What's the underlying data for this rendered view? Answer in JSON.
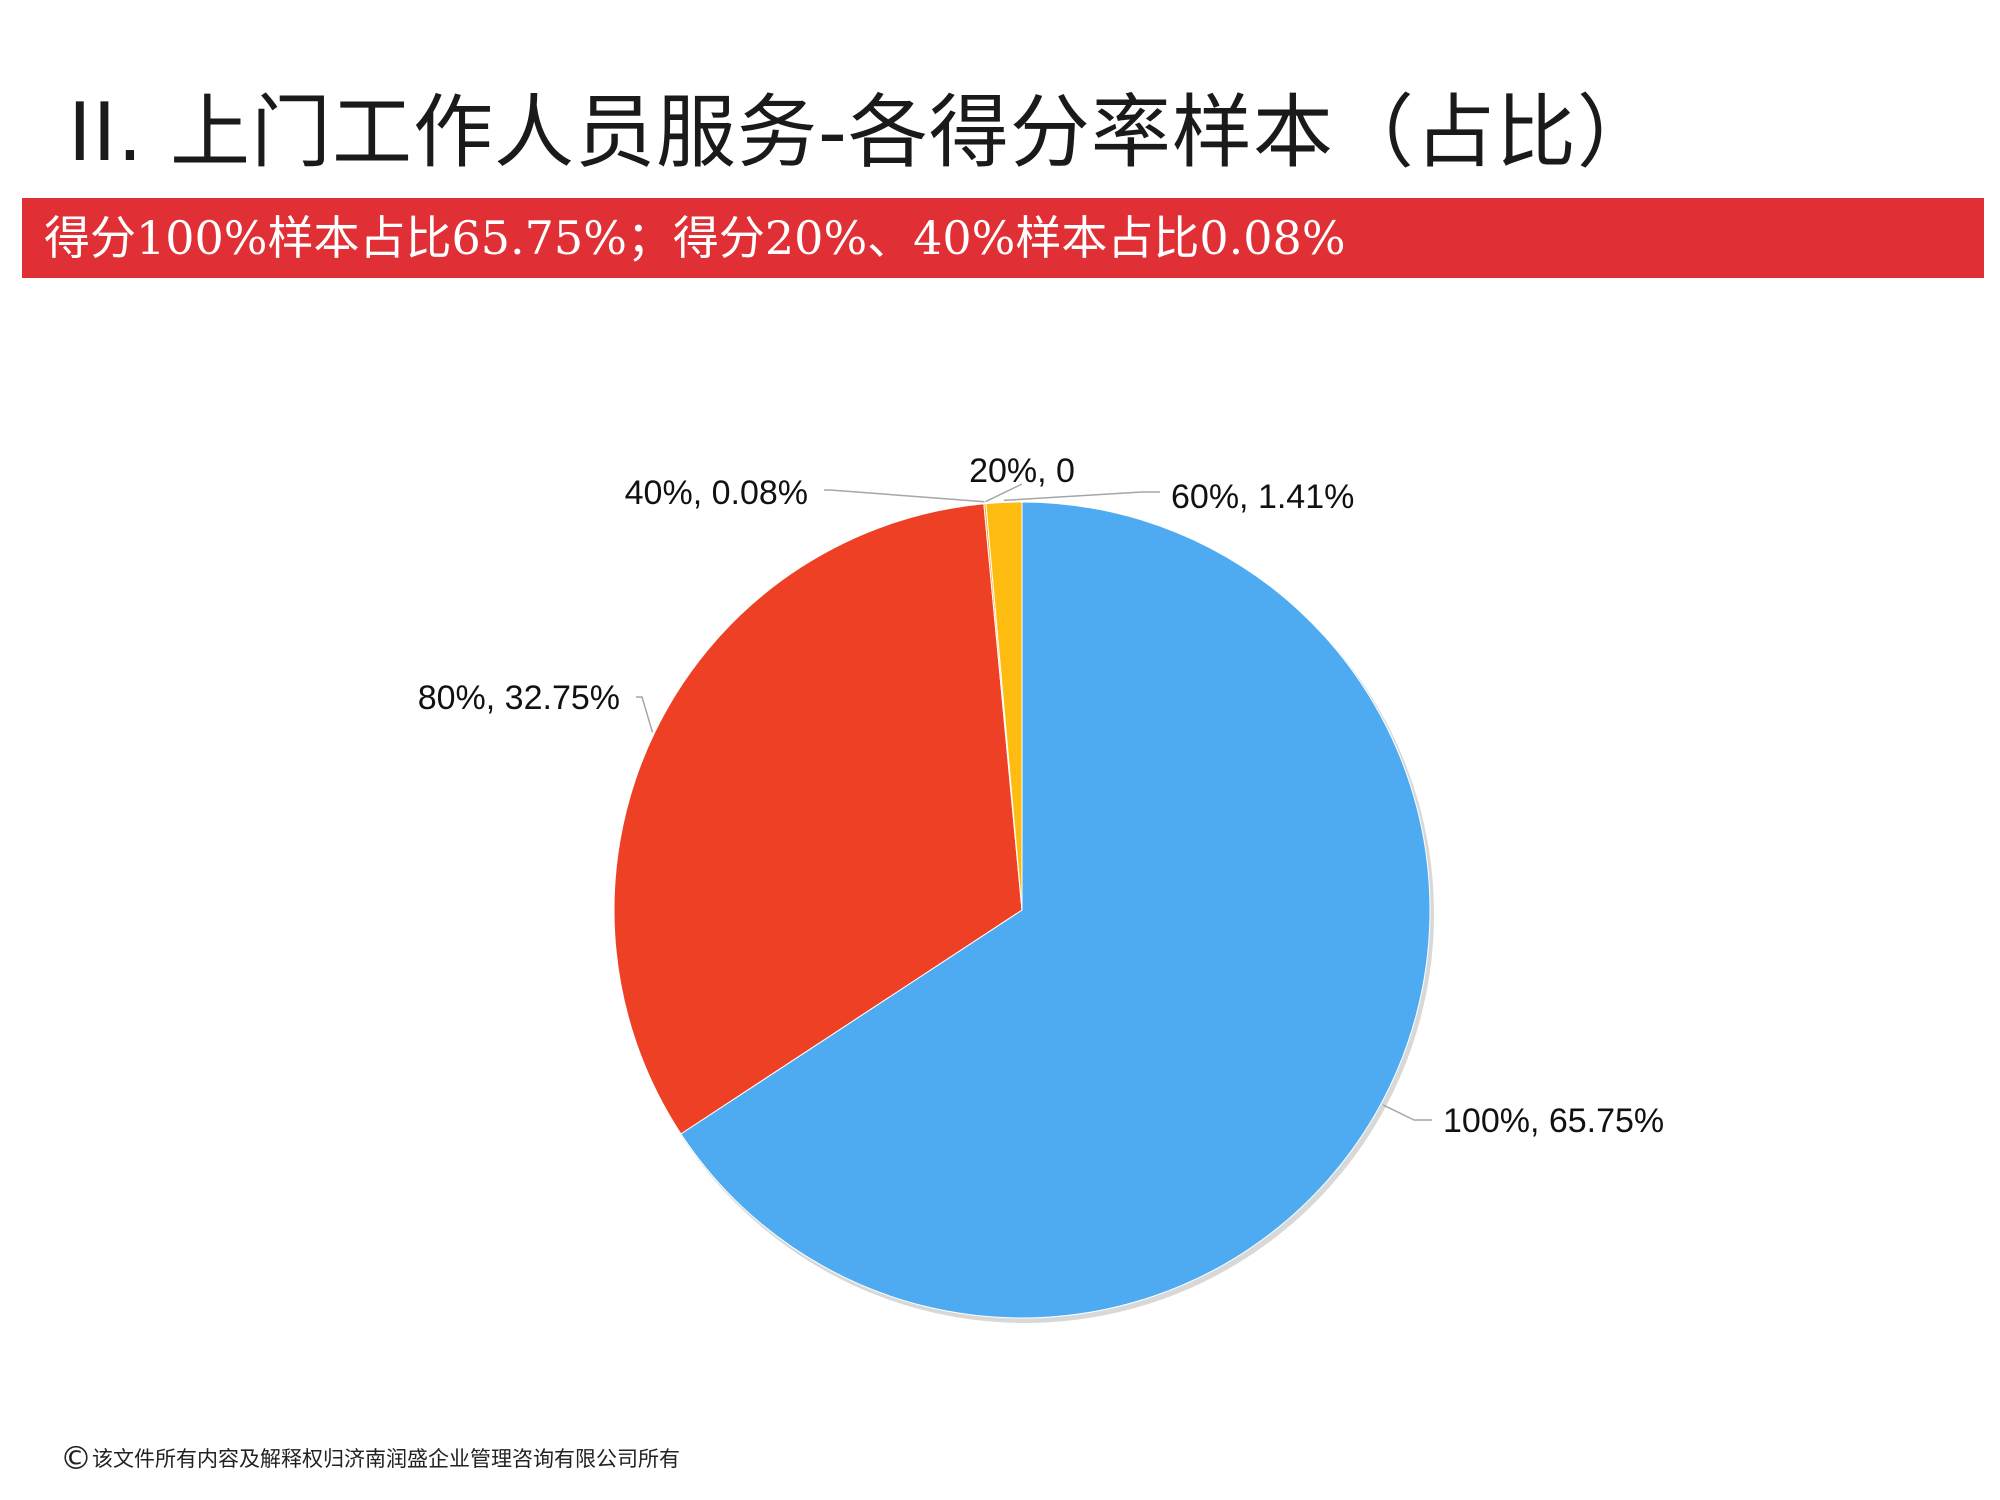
{
  "slide": {
    "title": "II.  上门工作人员服务-各得分率样本（占比）",
    "subtitle": "得分100%样本占比65.75%；得分20%、40%样本占比0.08%",
    "footer_symbol": "©",
    "footer_text": "该文件所有内容及解释权归济南润盛企业管理咨询有限公司所有",
    "banner_color": "#e03036"
  },
  "chart_data": {
    "type": "pie",
    "title": "",
    "start_angle_deg": 0,
    "direction": "clockwise",
    "slices": [
      {
        "category": "100%",
        "value": 65.75,
        "label": "100%, 65.75%",
        "color": "#4eabf1"
      },
      {
        "category": "80%",
        "value": 32.75,
        "label": "80%, 32.75%",
        "color": "#ed4024"
      },
      {
        "category": "40%",
        "value": 0.08,
        "label": "40%, 0.08%",
        "color": "#f1a020"
      },
      {
        "category": "20%",
        "value": 0,
        "label": "20%, 0",
        "color": "#ffd666"
      },
      {
        "category": "60%",
        "value": 1.41,
        "label": "60%, 1.41%",
        "color": "#fdbc0f"
      }
    ]
  }
}
